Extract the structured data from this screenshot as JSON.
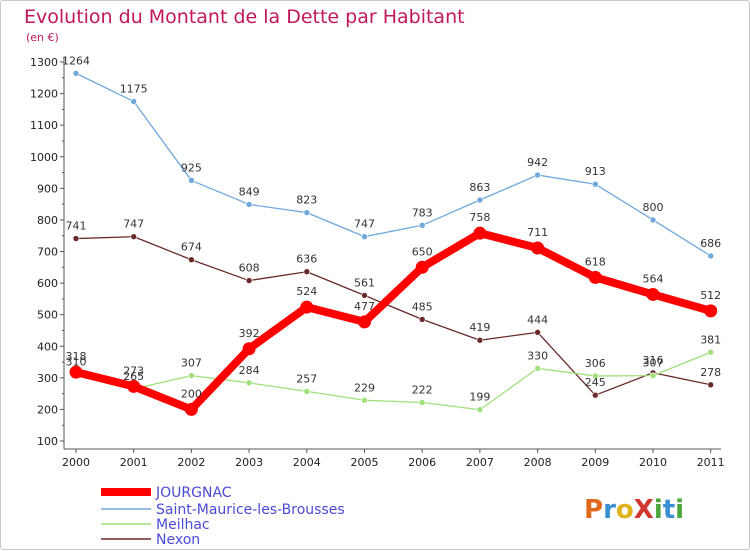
{
  "chart_data": {
    "type": "line",
    "title": "Evolution du Montant de la Dette par Habitant",
    "subtitle": "(en €)",
    "categories": [
      "2000",
      "2001",
      "2002",
      "2003",
      "2004",
      "2005",
      "2006",
      "2007",
      "2008",
      "2009",
      "2010",
      "2011"
    ],
    "ylim": [
      100,
      1300
    ],
    "yticks": [
      100,
      200,
      300,
      400,
      500,
      600,
      700,
      800,
      900,
      1000,
      1100,
      1200,
      1300
    ],
    "grid": false,
    "legend_position": "bottom-left",
    "series": [
      {
        "name": "JOURGNAC",
        "color": "#ff0000",
        "values": [
          318,
          273,
          200,
          392,
          524,
          477,
          650,
          758,
          711,
          618,
          564,
          512
        ]
      },
      {
        "name": "Saint-Maurice-les-Brousses",
        "color": "#6fa8dc",
        "values": [
          1264,
          1175,
          925,
          849,
          823,
          747,
          783,
          863,
          942,
          913,
          800,
          686
        ]
      },
      {
        "name": "Meilhac",
        "color": "#9fe07a",
        "values": [
          310,
          265,
          307,
          284,
          257,
          229,
          222,
          199,
          330,
          306,
          307,
          381
        ]
      },
      {
        "name": "Nexon",
        "color": "#6b2a2a",
        "values": [
          741,
          747,
          674,
          608,
          636,
          561,
          485,
          419,
          444,
          245,
          316,
          278
        ]
      }
    ]
  },
  "logo": {
    "text": "ProXiti",
    "letters": [
      "P",
      "r",
      "o",
      "X",
      "i",
      "t",
      "i"
    ]
  }
}
